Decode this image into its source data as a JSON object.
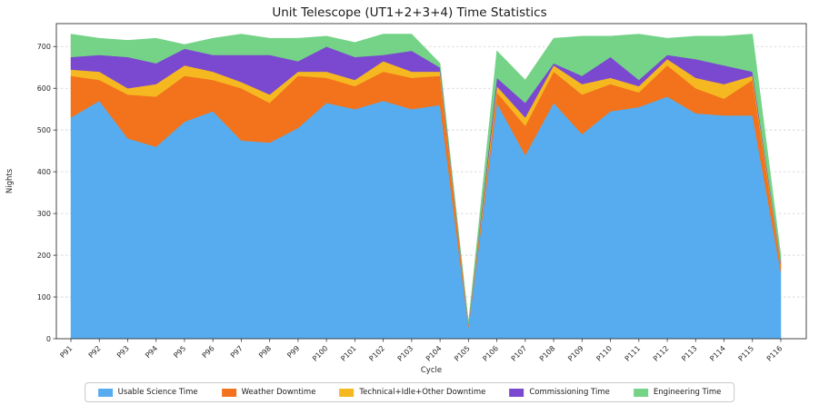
{
  "title": "Unit Telescope (UT1+2+3+4) Time Statistics",
  "chart_data": {
    "type": "area",
    "stacked": true,
    "title": "Unit Telescope (UT1+2+3+4) Time Statistics",
    "xlabel": "Cycle",
    "ylabel": "Nights",
    "ylim": [
      0,
      755
    ],
    "yticks": [
      0,
      100,
      200,
      300,
      400,
      500,
      600,
      700
    ],
    "grid": "dashed-horizontal",
    "legend_position": "bottom",
    "categories": [
      "P91",
      "P92",
      "P93",
      "P94",
      "P95",
      "P96",
      "P97",
      "P98",
      "P99",
      "P100",
      "P101",
      "P102",
      "P103",
      "P104",
      "P105",
      "P106",
      "P107",
      "P108",
      "P109",
      "P110",
      "P111",
      "P112",
      "P113",
      "P114",
      "P115",
      "P116"
    ],
    "series": [
      {
        "name": "Usable Science Time",
        "color": "#57ACF0",
        "values": [
          530,
          570,
          480,
          460,
          520,
          545,
          475,
          470,
          505,
          565,
          550,
          570,
          550,
          560,
          28,
          565,
          440,
          565,
          490,
          545,
          555,
          580,
          540,
          535,
          535,
          160
        ]
      },
      {
        "name": "Weather Downtime",
        "color": "#F2731B",
        "values": [
          100,
          50,
          105,
          120,
          110,
          75,
          125,
          95,
          125,
          60,
          55,
          70,
          75,
          70,
          3,
          25,
          70,
          75,
          95,
          65,
          35,
          75,
          60,
          40,
          85,
          15
        ]
      },
      {
        "name": "Technical+Idle+Other Downtime",
        "color": "#F5B820",
        "values": [
          15,
          20,
          15,
          30,
          25,
          20,
          15,
          20,
          10,
          15,
          15,
          25,
          15,
          10,
          2,
          15,
          20,
          15,
          25,
          15,
          15,
          15,
          25,
          35,
          10,
          5
        ]
      },
      {
        "name": "Commissioning Time",
        "color": "#7A49CF",
        "values": [
          30,
          40,
          75,
          50,
          40,
          40,
          65,
          95,
          25,
          60,
          55,
          15,
          50,
          10,
          2,
          20,
          35,
          5,
          20,
          50,
          15,
          10,
          45,
          45,
          10,
          5
        ]
      },
      {
        "name": "Engineering Time",
        "color": "#74D387",
        "values": [
          55,
          40,
          40,
          60,
          10,
          40,
          50,
          40,
          55,
          25,
          35,
          50,
          40,
          10,
          3,
          65,
          55,
          60,
          95,
          50,
          110,
          40,
          55,
          70,
          90,
          15
        ]
      }
    ]
  }
}
